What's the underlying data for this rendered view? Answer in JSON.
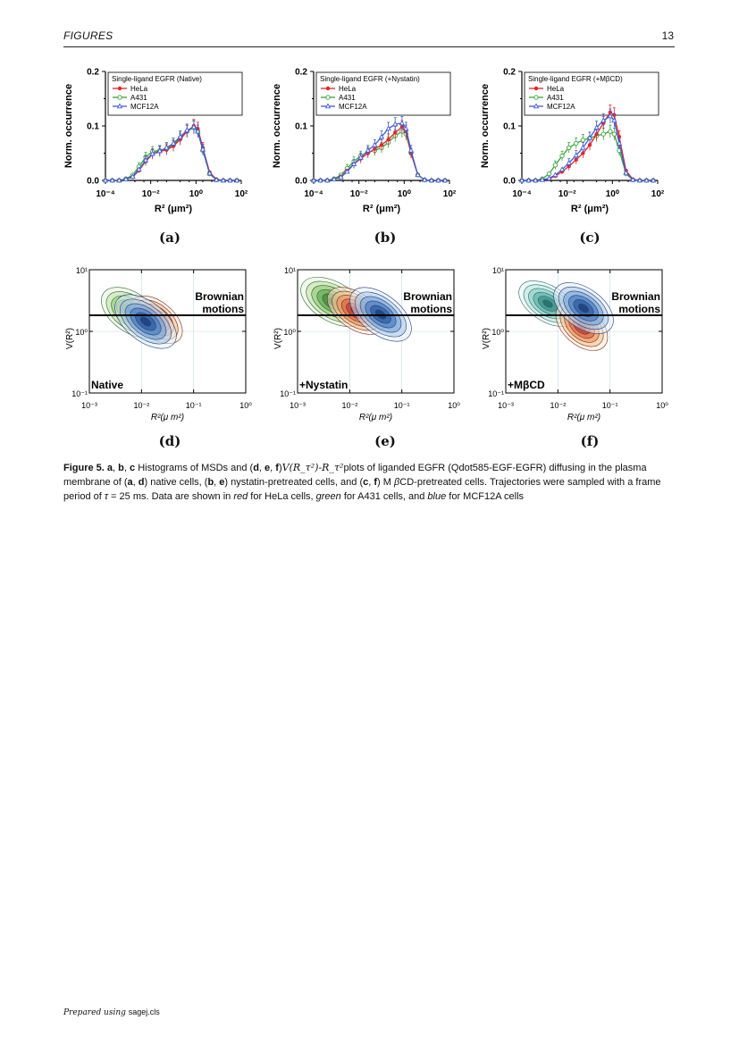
{
  "header": {
    "left": "FIGURES",
    "right": "13"
  },
  "histograms": [
    {
      "id": "a",
      "legend_title": "Single-ligand EGFR (Native)",
      "panel_label": "(a)"
    },
    {
      "id": "b",
      "legend_title": "Single-ligand EGFR (+Nystatin)",
      "panel_label": "(b)"
    },
    {
      "id": "c",
      "legend_title": "Single-ligand EGFR (+MβCD)",
      "panel_label": "(c)"
    }
  ],
  "hist_common": {
    "ylabel": "Norm. occurrence",
    "xlabel": "R² (μm²)",
    "yticks": [
      "0.0",
      "0.1",
      "0.2"
    ],
    "xticks": [
      "10⁻⁴",
      "10⁻²",
      "10⁰",
      "10²"
    ],
    "series": [
      {
        "name": "HeLa",
        "color": "#e3262b",
        "marker": "circle"
      },
      {
        "name": "A431",
        "color": "#3aa23a",
        "marker": "circle-open"
      },
      {
        "name": "MCF12A",
        "color": "#3b5fd6",
        "marker": "triangle"
      }
    ]
  },
  "contours": [
    {
      "id": "d",
      "condition": "Native",
      "panel_label": "(d)"
    },
    {
      "id": "e",
      "condition": "+Nystatin",
      "panel_label": "(e)"
    },
    {
      "id": "f",
      "condition": "+MβCD",
      "panel_label": "(f)"
    }
  ],
  "contour_common": {
    "ylabel": "V(R²)",
    "xlabel": "R²(μ m²)",
    "annotation_line1": "Brownian",
    "annotation_line2": "motions",
    "yticks": [
      "10¹",
      "10⁰",
      "10⁻¹"
    ],
    "xticks": [
      "10⁻³",
      "10⁻²",
      "10⁻¹",
      "10⁰"
    ]
  },
  "chart_data": [
    {
      "type": "line",
      "title": "Single-ligand EGFR (Native)",
      "xlabel": "R² (μm²)",
      "ylabel": "Norm. occurrence",
      "x_scale": "log",
      "xlim": [
        0.0001,
        100
      ],
      "ylim": [
        0,
        0.2
      ],
      "x": [
        0.0001,
        0.0002,
        0.0004,
        0.0008,
        0.0016,
        0.003,
        0.006,
        0.012,
        0.025,
        0.05,
        0.1,
        0.2,
        0.4,
        0.8,
        1.2,
        2,
        4,
        8,
        16,
        32,
        64
      ],
      "series": [
        {
          "name": "HeLa",
          "values": [
            0,
            0,
            0,
            0.002,
            0.006,
            0.018,
            0.035,
            0.048,
            0.053,
            0.056,
            0.063,
            0.075,
            0.09,
            0.1,
            0.095,
            0.06,
            0.015,
            0.002,
            0,
            0,
            0
          ]
        },
        {
          "name": "A431",
          "values": [
            0,
            0,
            0,
            0.003,
            0.01,
            0.025,
            0.043,
            0.053,
            0.055,
            0.058,
            0.065,
            0.078,
            0.09,
            0.097,
            0.09,
            0.055,
            0.012,
            0.001,
            0,
            0,
            0
          ]
        },
        {
          "name": "MCF12A",
          "values": [
            0,
            0,
            0,
            0.002,
            0.007,
            0.02,
            0.037,
            0.049,
            0.054,
            0.06,
            0.068,
            0.08,
            0.092,
            0.098,
            0.09,
            0.057,
            0.013,
            0.001,
            0,
            0,
            0
          ]
        }
      ]
    },
    {
      "type": "line",
      "title": "Single-ligand EGFR (+Nystatin)",
      "xlabel": "R² (μm²)",
      "ylabel": "Norm. occurrence",
      "x_scale": "log",
      "xlim": [
        0.0001,
        100
      ],
      "ylim": [
        0,
        0.2
      ],
      "x": [
        0.0001,
        0.0002,
        0.0004,
        0.0008,
        0.0016,
        0.003,
        0.006,
        0.012,
        0.025,
        0.05,
        0.1,
        0.2,
        0.4,
        0.8,
        1.2,
        2,
        4,
        8,
        16,
        32,
        64
      ],
      "series": [
        {
          "name": "HeLa",
          "values": [
            0,
            0,
            0,
            0.002,
            0.007,
            0.018,
            0.03,
            0.04,
            0.05,
            0.058,
            0.065,
            0.075,
            0.088,
            0.098,
            0.09,
            0.05,
            0.01,
            0.001,
            0,
            0,
            0
          ]
        },
        {
          "name": "A431",
          "values": [
            0,
            0,
            0,
            0.003,
            0.01,
            0.022,
            0.035,
            0.045,
            0.052,
            0.055,
            0.06,
            0.07,
            0.082,
            0.09,
            0.085,
            0.05,
            0.01,
            0.001,
            0,
            0,
            0
          ]
        },
        {
          "name": "MCF12A",
          "values": [
            0,
            0,
            0,
            0.002,
            0.006,
            0.016,
            0.03,
            0.042,
            0.055,
            0.065,
            0.08,
            0.095,
            0.103,
            0.105,
            0.095,
            0.055,
            0.01,
            0.001,
            0,
            0,
            0
          ]
        }
      ]
    },
    {
      "type": "line",
      "title": "Single-ligand EGFR (+MβCD)",
      "xlabel": "R² (μm²)",
      "ylabel": "Norm. occurrence",
      "x_scale": "log",
      "xlim": [
        0.0001,
        100
      ],
      "ylim": [
        0,
        0.2
      ],
      "x": [
        0.0001,
        0.0002,
        0.0004,
        0.0008,
        0.0016,
        0.003,
        0.006,
        0.012,
        0.025,
        0.05,
        0.1,
        0.2,
        0.4,
        0.8,
        1.2,
        2,
        4,
        8,
        16,
        32,
        64
      ],
      "series": [
        {
          "name": "HeLa",
          "values": [
            0,
            0,
            0,
            0.001,
            0.003,
            0.008,
            0.016,
            0.026,
            0.038,
            0.05,
            0.065,
            0.085,
            0.105,
            0.125,
            0.12,
            0.08,
            0.018,
            0.002,
            0,
            0,
            0
          ]
        },
        {
          "name": "A431",
          "values": [
            0,
            0,
            0,
            0.003,
            0.012,
            0.028,
            0.045,
            0.06,
            0.068,
            0.074,
            0.078,
            0.082,
            0.085,
            0.09,
            0.085,
            0.055,
            0.012,
            0.001,
            0,
            0,
            0
          ]
        },
        {
          "name": "MCF12A",
          "values": [
            0,
            0,
            0,
            0.001,
            0.004,
            0.01,
            0.02,
            0.032,
            0.046,
            0.06,
            0.078,
            0.097,
            0.11,
            0.118,
            0.11,
            0.068,
            0.014,
            0.001,
            0,
            0,
            0
          ]
        }
      ]
    }
  ],
  "caption": {
    "label": "Figure 5.",
    "part1": " a",
    "part2": ", ",
    "part3": "b",
    "part4": ", ",
    "part5": "c",
    "part6": " Histograms of MSDs and (",
    "part7": "d",
    "part8": ", ",
    "part9": "e",
    "part10": ", ",
    "part11": "f",
    "part12": ")",
    "part13": "V(R_τ²)-R_τ²",
    "part14": "plots of liganded EGFR (Qdot585-EGF-EGFR) diffusing in the plasma membrane of (",
    "part15": "a",
    "part16": ", ",
    "part17": "d",
    "part18": ") native cells, (",
    "part19": "b",
    "part20": ", ",
    "part21": "e",
    "part22": ") nystatin-pretreated cells, and (",
    "part23": "c",
    "part24": ", ",
    "part25": "f",
    "part26": ") M ",
    "part27": "β",
    "part28": "CD-pretreated cells. Trajectories were sampled with a frame period of ",
    "part29": "τ",
    "part30": " = 25 ms. Data are shown in ",
    "part31": "red",
    "part32": " for HeLa cells, ",
    "part33": "green",
    "part34": " for A431 cells, and ",
    "part35": "blue",
    "part36": " for MCF12A cells"
  },
  "footer": {
    "prefix": "Prepared using ",
    "file": "sagej.cls"
  }
}
